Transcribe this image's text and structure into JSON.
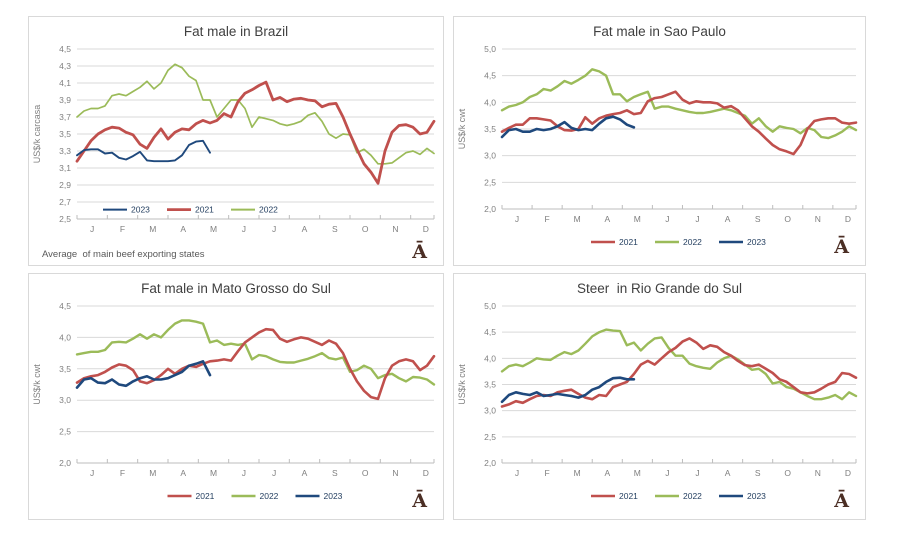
{
  "page": {
    "background": "#FFFFFF"
  },
  "branding": {
    "glyph": "Ā",
    "color": "#4B2E24"
  },
  "style": {
    "grid_color": "#D9D9D9",
    "axis_line_color": "#BDBDBD",
    "axis_text_color": "#7F7F7F",
    "title_color": "#3F3F3F",
    "legend_text_color": "#243F60",
    "footnote_color": "#595959",
    "panel_border_color": "#D9D9D9",
    "series_colors": {
      "2021": "#C0504D",
      "2022": "#9BBB59",
      "2023": "#1F497D"
    }
  },
  "chart_data": [
    {
      "type": "line",
      "title": "Fat male in Brazil",
      "ylabel": "US$/k carcasa",
      "ylim": [
        2.5,
        4.5
      ],
      "ystep": 0.2,
      "x_tick_labels": [
        "J",
        "F",
        "M",
        "A",
        "M",
        "J",
        "J",
        "A",
        "S",
        "O",
        "N",
        "D"
      ],
      "grid": true,
      "footnote": "Average  of main beef exporting states",
      "legend": {
        "position": "inside-bottom-left",
        "order": [
          "2023",
          "2021",
          "2022"
        ],
        "y_value": 2.61
      },
      "series": [
        {
          "name": "2022",
          "color": "#9BBB59",
          "stroke_width": 1.7,
          "values": [
            3.7,
            3.77,
            3.8,
            3.8,
            3.83,
            3.95,
            3.97,
            3.95,
            4.0,
            4.05,
            4.12,
            4.03,
            4.1,
            4.25,
            4.32,
            4.28,
            4.18,
            4.13,
            3.9,
            3.9,
            3.7,
            3.8,
            3.9,
            3.9,
            3.8,
            3.58,
            3.7,
            3.68,
            3.66,
            3.62,
            3.6,
            3.62,
            3.65,
            3.72,
            3.75,
            3.65,
            3.5,
            3.45,
            3.5,
            3.49,
            3.28,
            3.32,
            3.25,
            3.15,
            3.15,
            3.16,
            3.22,
            3.28,
            3.3,
            3.26,
            3.33,
            3.27
          ]
        },
        {
          "name": "2021",
          "color": "#C0504D",
          "stroke_width": 2.8,
          "values": [
            3.18,
            3.3,
            3.42,
            3.5,
            3.55,
            3.58,
            3.57,
            3.52,
            3.49,
            3.38,
            3.33,
            3.46,
            3.56,
            3.44,
            3.52,
            3.56,
            3.55,
            3.62,
            3.66,
            3.63,
            3.66,
            3.74,
            3.7,
            3.88,
            3.98,
            4.02,
            4.07,
            4.11,
            3.9,
            3.93,
            3.88,
            3.91,
            3.92,
            3.9,
            3.89,
            3.82,
            3.85,
            3.86,
            3.7,
            3.5,
            3.32,
            3.15,
            3.05,
            2.92,
            3.3,
            3.52,
            3.6,
            3.61,
            3.58,
            3.5,
            3.52,
            3.65
          ]
        },
        {
          "name": "2023",
          "color": "#1F497D",
          "stroke_width": 1.9,
          "values": [
            3.25,
            3.31,
            3.32,
            3.32,
            3.27,
            3.28,
            3.22,
            3.2,
            3.24,
            3.29,
            3.19,
            3.18,
            3.18,
            3.18,
            3.19,
            3.25,
            3.37,
            3.41,
            3.42,
            3.28
          ]
        }
      ]
    },
    {
      "type": "line",
      "title": "Fat male in Sao Paulo",
      "ylabel": "US$/k cwt",
      "ylim": [
        2.0,
        5.0
      ],
      "ystep": 0.5,
      "x_tick_labels": [
        "J",
        "F",
        "M",
        "A",
        "M",
        "J",
        "J",
        "A",
        "S",
        "O",
        "N",
        "D"
      ],
      "grid": true,
      "legend": {
        "position": "below",
        "order": [
          "2021",
          "2022",
          "2023"
        ]
      },
      "series": [
        {
          "name": "2022",
          "color": "#9BBB59",
          "stroke_width": 2.4,
          "values": [
            3.85,
            3.92,
            3.95,
            4.0,
            4.1,
            4.15,
            4.25,
            4.22,
            4.3,
            4.4,
            4.35,
            4.42,
            4.5,
            4.62,
            4.58,
            4.5,
            4.15,
            4.15,
            4.02,
            4.1,
            4.15,
            4.2,
            3.88,
            3.92,
            3.92,
            3.88,
            3.85,
            3.82,
            3.8,
            3.8,
            3.82,
            3.85,
            3.88,
            3.85,
            3.8,
            3.75,
            3.6,
            3.7,
            3.55,
            3.45,
            3.55,
            3.52,
            3.5,
            3.42,
            3.52,
            3.48,
            3.35,
            3.33,
            3.38,
            3.45,
            3.55,
            3.48
          ]
        },
        {
          "name": "2021",
          "color": "#C0504D",
          "stroke_width": 2.6,
          "values": [
            3.45,
            3.52,
            3.58,
            3.58,
            3.7,
            3.7,
            3.68,
            3.66,
            3.55,
            3.48,
            3.47,
            3.5,
            3.72,
            3.6,
            3.7,
            3.75,
            3.78,
            3.8,
            3.85,
            3.78,
            3.8,
            4.02,
            4.08,
            4.1,
            4.15,
            4.2,
            4.05,
            3.98,
            4.02,
            4.0,
            4.0,
            3.98,
            3.9,
            3.93,
            3.85,
            3.7,
            3.55,
            3.45,
            3.32,
            3.2,
            3.12,
            3.08,
            3.03,
            3.2,
            3.5,
            3.65,
            3.68,
            3.7,
            3.7,
            3.62,
            3.6,
            3.62
          ]
        },
        {
          "name": "2023",
          "color": "#1F497D",
          "stroke_width": 2.6,
          "values": [
            3.35,
            3.48,
            3.5,
            3.45,
            3.45,
            3.5,
            3.48,
            3.5,
            3.55,
            3.63,
            3.52,
            3.48,
            3.5,
            3.48,
            3.6,
            3.7,
            3.73,
            3.68,
            3.58,
            3.53
          ]
        }
      ]
    },
    {
      "type": "line",
      "title": "Fat male in Mato Grosso do Sul",
      "ylabel": "US$/k cwt",
      "ylim": [
        2.0,
        4.5
      ],
      "ystep": 0.5,
      "x_tick_labels": [
        "J",
        "F",
        "M",
        "A",
        "M",
        "J",
        "J",
        "A",
        "S",
        "O",
        "N",
        "D"
      ],
      "grid": true,
      "legend": {
        "position": "below",
        "order": [
          "2021",
          "2022",
          "2023"
        ]
      },
      "series": [
        {
          "name": "2022",
          "color": "#9BBB59",
          "stroke_width": 2.4,
          "values": [
            3.73,
            3.75,
            3.77,
            3.77,
            3.8,
            3.92,
            3.93,
            3.92,
            3.98,
            4.05,
            3.98,
            4.05,
            4.0,
            4.12,
            4.22,
            4.27,
            4.27,
            4.25,
            4.22,
            3.92,
            3.95,
            3.88,
            3.9,
            3.88,
            3.9,
            3.65,
            3.72,
            3.7,
            3.65,
            3.61,
            3.6,
            3.6,
            3.63,
            3.66,
            3.7,
            3.75,
            3.67,
            3.65,
            3.68,
            3.45,
            3.48,
            3.55,
            3.5,
            3.35,
            3.4,
            3.42,
            3.35,
            3.3,
            3.37,
            3.36,
            3.33,
            3.25
          ]
        },
        {
          "name": "2021",
          "color": "#C0504D",
          "stroke_width": 2.6,
          "values": [
            3.28,
            3.35,
            3.38,
            3.4,
            3.45,
            3.52,
            3.57,
            3.55,
            3.48,
            3.3,
            3.27,
            3.32,
            3.4,
            3.5,
            3.42,
            3.5,
            3.55,
            3.53,
            3.58,
            3.62,
            3.63,
            3.65,
            3.63,
            3.78,
            3.92,
            4.0,
            4.08,
            4.13,
            4.12,
            3.98,
            3.93,
            3.97,
            4.0,
            3.98,
            3.93,
            3.88,
            3.95,
            3.9,
            3.75,
            3.5,
            3.3,
            3.15,
            3.05,
            3.02,
            3.35,
            3.55,
            3.62,
            3.65,
            3.62,
            3.48,
            3.55,
            3.7
          ]
        },
        {
          "name": "2023",
          "color": "#1F497D",
          "stroke_width": 2.6,
          "values": [
            3.2,
            3.33,
            3.35,
            3.28,
            3.27,
            3.33,
            3.25,
            3.23,
            3.3,
            3.35,
            3.38,
            3.33,
            3.33,
            3.35,
            3.4,
            3.45,
            3.55,
            3.58,
            3.62,
            3.4
          ]
        }
      ]
    },
    {
      "type": "line",
      "title": "Steer  in Rio Grande do Sul",
      "ylabel": "US$/k cwt",
      "ylim": [
        2.0,
        5.0
      ],
      "ystep": 0.5,
      "x_tick_labels": [
        "J",
        "F",
        "M",
        "A",
        "M",
        "J",
        "J",
        "A",
        "S",
        "O",
        "N",
        "D"
      ],
      "grid": true,
      "legend": {
        "position": "below",
        "order": [
          "2021",
          "2022",
          "2023"
        ]
      },
      "series": [
        {
          "name": "2022",
          "color": "#9BBB59",
          "stroke_width": 2.4,
          "values": [
            3.75,
            3.85,
            3.88,
            3.85,
            3.92,
            4.0,
            3.98,
            3.97,
            4.05,
            4.12,
            4.08,
            4.15,
            4.28,
            4.42,
            4.5,
            4.55,
            4.53,
            4.52,
            4.25,
            4.3,
            4.15,
            4.28,
            4.38,
            4.4,
            4.2,
            4.05,
            4.05,
            3.9,
            3.85,
            3.82,
            3.8,
            3.92,
            4.0,
            4.05,
            3.98,
            3.88,
            3.78,
            3.8,
            3.7,
            3.52,
            3.55,
            3.45,
            3.42,
            3.35,
            3.28,
            3.22,
            3.22,
            3.25,
            3.3,
            3.22,
            3.35,
            3.28
          ]
        },
        {
          "name": "2021",
          "color": "#C0504D",
          "stroke_width": 2.6,
          "values": [
            3.08,
            3.12,
            3.18,
            3.15,
            3.22,
            3.28,
            3.3,
            3.28,
            3.35,
            3.38,
            3.4,
            3.32,
            3.25,
            3.22,
            3.3,
            3.28,
            3.45,
            3.5,
            3.55,
            3.7,
            3.88,
            3.95,
            3.88,
            4.0,
            4.12,
            4.2,
            4.32,
            4.38,
            4.3,
            4.18,
            4.25,
            4.22,
            4.12,
            4.05,
            3.95,
            3.87,
            3.85,
            3.88,
            3.8,
            3.72,
            3.6,
            3.55,
            3.45,
            3.35,
            3.33,
            3.35,
            3.42,
            3.5,
            3.55,
            3.72,
            3.7,
            3.63
          ]
        },
        {
          "name": "2023",
          "color": "#1F497D",
          "stroke_width": 2.6,
          "values": [
            3.17,
            3.3,
            3.35,
            3.32,
            3.3,
            3.35,
            3.28,
            3.3,
            3.32,
            3.3,
            3.28,
            3.25,
            3.3,
            3.4,
            3.45,
            3.55,
            3.62,
            3.63,
            3.6,
            3.6
          ]
        }
      ]
    }
  ]
}
